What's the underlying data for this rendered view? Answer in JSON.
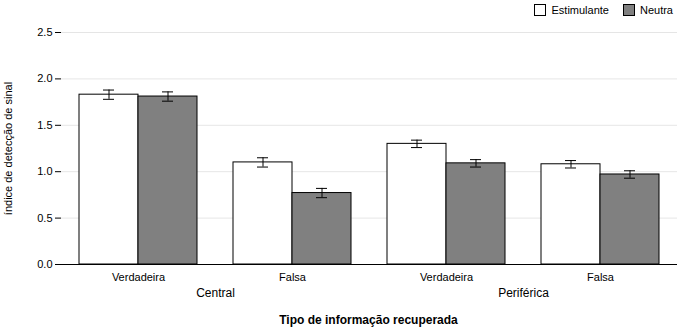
{
  "chart_data": {
    "type": "bar",
    "categories": [
      "Verdadeira",
      "Falsa",
      "Verdadeira",
      "Falsa"
    ],
    "category_groups": [
      "Central",
      "Central",
      "Periférica",
      "Periférica"
    ],
    "series": [
      {
        "name": "Estimulante",
        "color": "#ffffff",
        "values": [
          1.83,
          1.1,
          1.3,
          1.08
        ],
        "errors": [
          0.05,
          0.05,
          0.04,
          0.04
        ]
      },
      {
        "name": "Neutra",
        "color": "#808080",
        "values": [
          1.81,
          0.77,
          1.09,
          0.97
        ],
        "errors": [
          0.05,
          0.05,
          0.04,
          0.04
        ]
      }
    ],
    "xlabel": "Tipo de informação recuperada",
    "ylabel": "índice de detecção de sinal",
    "ylim": [
      0,
      2.5
    ],
    "yticks": [
      {
        "value": 0,
        "label": "0.0"
      },
      {
        "value": 0.5,
        "label": "0.5"
      },
      {
        "value": 1,
        "label": "1.0"
      },
      {
        "value": 1.5,
        "label": "1.5"
      },
      {
        "value": 2,
        "label": "2.0"
      },
      {
        "value": 2.5,
        "label": "2.5"
      }
    ],
    "grid": true,
    "legend": "upper right"
  }
}
